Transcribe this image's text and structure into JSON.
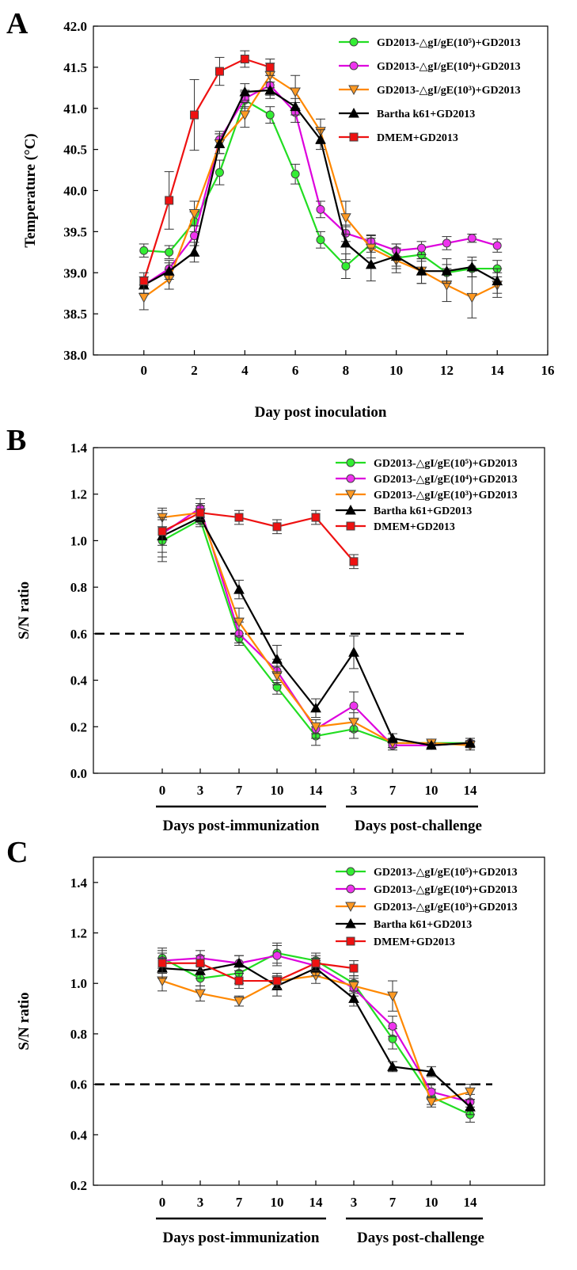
{
  "legend_labels": [
    "GD2013-△gI/gE(10⁵)+GD2013",
    "GD2013-△gI/gE(10⁴)+GD2013",
    "GD2013-△gI/gE(10³)+GD2013",
    "Bartha k61+GD2013",
    "DMEM+GD2013"
  ],
  "series_style": [
    {
      "color": "#22dd22",
      "marker": "circle",
      "fill": "#33ee33"
    },
    {
      "color": "#dd00dd",
      "marker": "circle",
      "fill": "#ee33ee"
    },
    {
      "color": "#ff8800",
      "marker": "triangle-down",
      "fill": "#ff9922"
    },
    {
      "color": "#000000",
      "marker": "triangle-up",
      "fill": "#000000"
    },
    {
      "color": "#ee1111",
      "marker": "square",
      "fill": "#ee1111"
    }
  ],
  "chart_data": [
    {
      "panel": "A",
      "type": "line",
      "xlabel": "Day post inoculation",
      "ylabel": "Temperature (°C)",
      "xlim": [
        -2,
        16
      ],
      "ylim": [
        38.0,
        42.0
      ],
      "x_ticks": [
        0,
        2,
        4,
        6,
        8,
        10,
        12,
        14,
        16
      ],
      "y_ticks": [
        "38.0",
        "38.5",
        "39.0",
        "39.5",
        "40.0",
        "40.5",
        "41.0",
        "41.5",
        "42.0"
      ],
      "x": [
        0,
        1,
        2,
        3,
        4,
        5,
        6,
        7,
        8,
        9,
        10,
        11,
        12,
        13,
        14
      ],
      "series": [
        {
          "name": "GD2013-△gI/gE(10⁵)+GD2013",
          "values": [
            39.27,
            39.25,
            39.62,
            40.22,
            41.1,
            40.92,
            40.2,
            39.4,
            39.08,
            39.35,
            39.18,
            39.22,
            39.0,
            39.05,
            39.05
          ],
          "errors": [
            0.08,
            0.08,
            0.12,
            0.15,
            0.1,
            0.1,
            0.12,
            0.1,
            0.15,
            0.1,
            0.1,
            0.08,
            0.1,
            0.1,
            0.1
          ]
        },
        {
          "name": "GD2013-△gI/gE(10⁴)+GD2013",
          "values": [
            38.85,
            39.05,
            39.45,
            40.62,
            41.12,
            41.28,
            40.95,
            39.77,
            39.48,
            39.38,
            39.27,
            39.3,
            39.36,
            39.42,
            39.33
          ],
          "errors": [
            0.1,
            0.1,
            0.12,
            0.1,
            0.1,
            0.12,
            0.12,
            0.1,
            0.1,
            0.08,
            0.08,
            0.08,
            0.08,
            0.05,
            0.08
          ]
        },
        {
          "name": "GD2013-△gI/gE(10³)+GD2013",
          "values": [
            38.7,
            38.92,
            39.72,
            40.57,
            40.92,
            41.4,
            41.2,
            40.72,
            39.67,
            39.3,
            39.15,
            39.02,
            38.85,
            38.7,
            38.85
          ],
          "errors": [
            0.15,
            0.12,
            0.15,
            0.12,
            0.15,
            0.15,
            0.2,
            0.15,
            0.2,
            0.12,
            0.15,
            0.15,
            0.2,
            0.25,
            0.15
          ]
        },
        {
          "name": "Bartha k61+GD2013",
          "values": [
            38.85,
            39.02,
            39.25,
            40.57,
            41.2,
            41.22,
            41.02,
            40.62,
            39.36,
            39.1,
            39.2,
            39.02,
            39.02,
            39.07,
            38.9
          ],
          "errors": [
            0.1,
            0.1,
            0.12,
            0.12,
            0.1,
            0.1,
            0.1,
            0.12,
            0.2,
            0.2,
            0.15,
            0.15,
            0.15,
            0.12,
            0.15
          ]
        },
        {
          "name": "DMEM+GD2013",
          "values": [
            38.9,
            39.88,
            40.92,
            41.45,
            41.6,
            41.5,
            null,
            null,
            null,
            null,
            null,
            null,
            null,
            null,
            null
          ],
          "errors": [
            0.1,
            0.35,
            0.43,
            0.17,
            0.1,
            0.1,
            null,
            null,
            null,
            null,
            null,
            null,
            null,
            null,
            null
          ]
        }
      ]
    },
    {
      "panel": "B",
      "type": "line",
      "xlabel": "",
      "ylabel": "S/N ratio",
      "ylim": [
        0.0,
        1.4
      ],
      "y_ticks": [
        "0.0",
        "0.2",
        "0.4",
        "0.6",
        "0.8",
        "1.0",
        "1.2",
        "1.4"
      ],
      "categories": [
        "0",
        "3",
        "7",
        "10",
        "14",
        "3",
        "7",
        "10",
        "14"
      ],
      "group_labels": [
        "Days post-immunization",
        "Days post-challenge"
      ],
      "cutoff": 0.6,
      "series": [
        {
          "name": "GD2013-△gI/gE(10⁵)+GD2013",
          "values": [
            1.0,
            1.09,
            0.58,
            0.37,
            0.16,
            0.19,
            0.13,
            0.13,
            0.13
          ],
          "errors": [
            0.09,
            0.03,
            0.02,
            0.03,
            0.04,
            0.04,
            0.02,
            0.01,
            0.01
          ]
        },
        {
          "name": "GD2013-△gI/gE(10⁴)+GD2013",
          "values": [
            1.03,
            1.14,
            0.6,
            0.44,
            0.19,
            0.29,
            0.12,
            0.12,
            0.13
          ],
          "errors": [
            0.1,
            0.04,
            0.05,
            0.05,
            0.04,
            0.06,
            0.02,
            0.01,
            0.02
          ]
        },
        {
          "name": "GD2013-△gI/gE(10³)+GD2013",
          "values": [
            1.1,
            1.12,
            0.65,
            0.42,
            0.2,
            0.22,
            0.13,
            0.13,
            0.12
          ],
          "errors": [
            0.04,
            0.04,
            0.06,
            0.04,
            0.03,
            0.04,
            0.02,
            0.01,
            0.02
          ]
        },
        {
          "name": "Bartha k61+GD2013",
          "values": [
            1.02,
            1.1,
            0.79,
            0.49,
            0.28,
            0.52,
            0.15,
            0.12,
            0.13
          ],
          "errors": [
            0.07,
            0.03,
            0.04,
            0.06,
            0.04,
            0.07,
            0.02,
            0.01,
            0.02
          ]
        },
        {
          "name": "DMEM+GD2013",
          "values": [
            1.04,
            1.12,
            1.1,
            1.06,
            1.1,
            0.91,
            null,
            null,
            null
          ],
          "errors": [
            0.06,
            0.03,
            0.03,
            0.03,
            0.03,
            0.03,
            null,
            null,
            null
          ]
        }
      ]
    },
    {
      "panel": "C",
      "type": "line",
      "xlabel": "",
      "ylabel": "S/N ratio",
      "ylim": [
        0.2,
        1.5
      ],
      "y_ticks": [
        "0.2",
        "0.4",
        "0.6",
        "0.8",
        "1.0",
        "1.2",
        "1.4"
      ],
      "categories": [
        "0",
        "3",
        "7",
        "10",
        "14",
        "3",
        "7",
        "10",
        "14"
      ],
      "group_labels": [
        "Days post-immunization",
        "Days post-challenge"
      ],
      "cutoff": 0.6,
      "series": [
        {
          "name": "GD2013-△gI/gE(10⁵)+GD2013",
          "values": [
            1.1,
            1.02,
            1.04,
            1.12,
            1.09,
            1.0,
            0.78,
            0.55,
            0.48
          ],
          "errors": [
            0.04,
            0.03,
            0.04,
            0.04,
            0.03,
            0.03,
            0.04,
            0.03,
            0.03
          ]
        },
        {
          "name": "GD2013-△gI/gE(10⁴)+GD2013",
          "values": [
            1.09,
            1.1,
            1.08,
            1.11,
            1.07,
            0.98,
            0.83,
            0.57,
            0.53
          ],
          "errors": [
            0.04,
            0.03,
            0.03,
            0.04,
            0.03,
            0.03,
            0.04,
            0.03,
            0.03
          ]
        },
        {
          "name": "GD2013-△gI/gE(10³)+GD2013",
          "values": [
            1.01,
            0.96,
            0.93,
            1.01,
            1.03,
            0.99,
            0.95,
            0.53,
            0.57
          ],
          "errors": [
            0.04,
            0.03,
            0.02,
            0.03,
            0.03,
            0.03,
            0.06,
            0.02,
            0.03
          ]
        },
        {
          "name": "Bartha k61+GD2013",
          "values": [
            1.06,
            1.05,
            1.08,
            0.99,
            1.06,
            0.94,
            0.67,
            0.65,
            0.51
          ],
          "errors": [
            0.04,
            0.03,
            0.03,
            0.04,
            0.03,
            0.03,
            0.02,
            0.02,
            0.03
          ]
        },
        {
          "name": "DMEM+GD2013",
          "values": [
            1.08,
            1.08,
            1.01,
            1.01,
            1.08,
            1.06,
            null,
            null,
            null
          ],
          "errors": [
            0.04,
            0.03,
            0.03,
            0.03,
            0.03,
            0.03,
            null,
            null,
            null
          ]
        }
      ]
    }
  ]
}
